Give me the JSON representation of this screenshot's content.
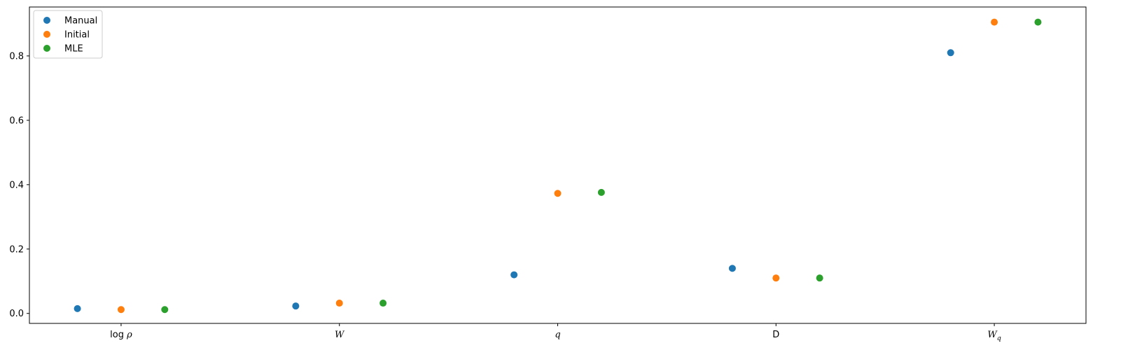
{
  "chart_data": {
    "type": "scatter",
    "categories": [
      "log ρ",
      "W",
      "q",
      "D",
      "Wq"
    ],
    "category_labels": [
      {
        "main": "log ",
        "italic": "ρ",
        "sub": ""
      },
      {
        "main": "",
        "italic": "W",
        "sub": ""
      },
      {
        "main": "",
        "italic": "q",
        "sub": ""
      },
      {
        "main": "D",
        "italic": "",
        "sub": ""
      },
      {
        "main": "",
        "italic": "W",
        "sub": "q"
      }
    ],
    "offsets": [
      -0.2,
      0.0,
      0.2
    ],
    "series": [
      {
        "name": "Manual",
        "color": "#1f77b4",
        "values": [
          0.015,
          0.023,
          0.12,
          0.14,
          0.81
        ]
      },
      {
        "name": "Initial",
        "color": "#ff7f0e",
        "values": [
          0.012,
          0.032,
          0.373,
          0.11,
          0.905
        ]
      },
      {
        "name": "MLE",
        "color": "#2ca02c",
        "values": [
          0.012,
          0.032,
          0.376,
          0.11,
          0.905
        ]
      }
    ],
    "yticks": [
      "0.0",
      "0.2",
      "0.4",
      "0.6",
      "0.8"
    ],
    "ylim": [
      -0.031,
      0.952
    ],
    "xlim": [
      -0.42,
      4.42
    ],
    "legend": "top-left",
    "grid": false,
    "title": "",
    "xlabel": "",
    "ylabel": ""
  }
}
